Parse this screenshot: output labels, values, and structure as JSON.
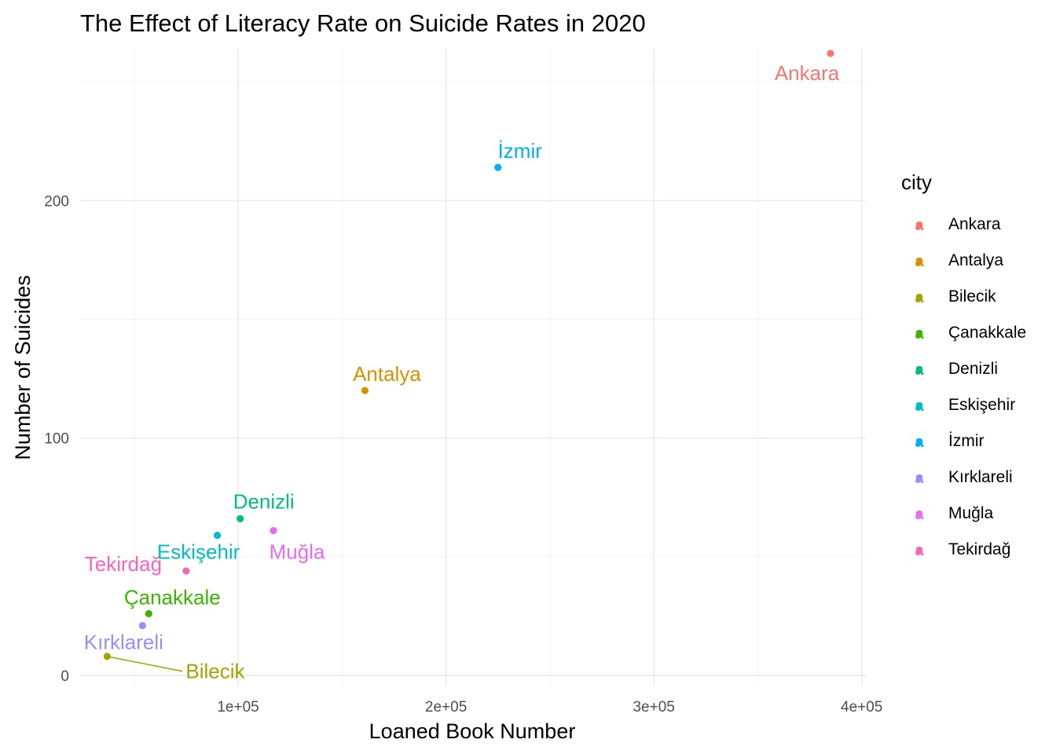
{
  "chart_data": {
    "type": "scatter",
    "title": "The Effect of Literacy Rate on Suicide Rates in 2020",
    "xlabel": "Loaned Book Number",
    "ylabel": "Number of Suicides",
    "xlim": [
      24000,
      402000
    ],
    "ylim": [
      -4,
      264
    ],
    "x_ticks": [
      100000,
      200000,
      300000,
      400000
    ],
    "x_tick_labels": [
      "1e+05",
      "2e+05",
      "3e+05",
      "4e+05"
    ],
    "y_ticks": [
      0,
      100,
      200
    ],
    "y_tick_labels": [
      "0",
      "100",
      "200"
    ],
    "grid": true,
    "legend": {
      "title": "city",
      "position": "right",
      "key_glyph": "a"
    },
    "series": [
      {
        "name": "Ankara",
        "color": "#F8766D",
        "x": 385000,
        "y": 262
      },
      {
        "name": "Antalya",
        "color": "#D89000",
        "x": 161000,
        "y": 120
      },
      {
        "name": "Bilecik",
        "color": "#A3A500",
        "x": 37000,
        "y": 8
      },
      {
        "name": "Çanakkale",
        "color": "#39B600",
        "x": 57000,
        "y": 26
      },
      {
        "name": "Denizli",
        "color": "#00BF7D",
        "x": 101000,
        "y": 66
      },
      {
        "name": "Eskişehir",
        "color": "#00BFC4",
        "x": 90000,
        "y": 59
      },
      {
        "name": "İzmir",
        "color": "#00B0F6",
        "x": 225000,
        "y": 214
      },
      {
        "name": "Kırklareli",
        "color": "#9590FF",
        "x": 54000,
        "y": 21
      },
      {
        "name": "Muğla",
        "color": "#E76BF3",
        "x": 117000,
        "y": 61
      },
      {
        "name": "Tekirdağ",
        "color": "#FF62BC",
        "x": 75000,
        "y": 44
      }
    ]
  }
}
